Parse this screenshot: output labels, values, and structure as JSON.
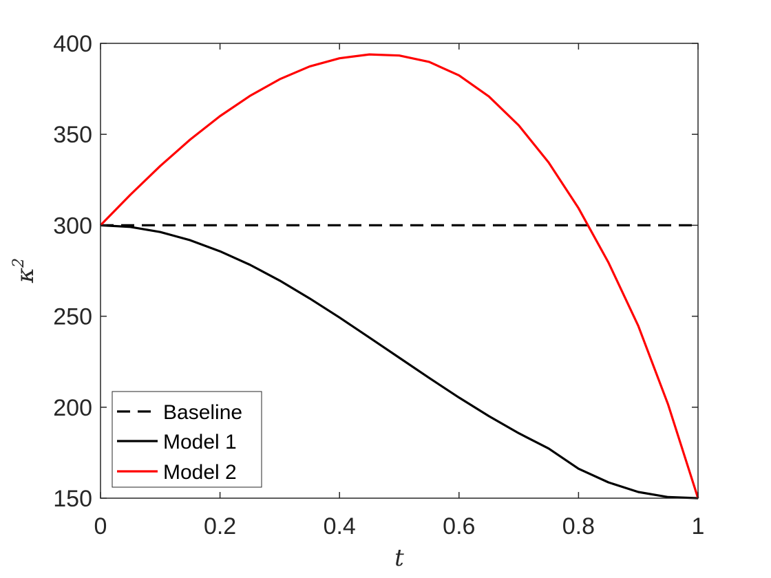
{
  "chart_data": {
    "type": "line",
    "xlabel": "t",
    "ylabel_base": "κ",
    "ylabel_sup": "2",
    "xlim": [
      0,
      1
    ],
    "ylim": [
      150,
      400
    ],
    "x_ticks": [
      0,
      0.2,
      0.4,
      0.6,
      0.8,
      1
    ],
    "x_tick_labels": [
      "0",
      "0.2",
      "0.4",
      "0.6",
      "0.8",
      "1"
    ],
    "y_ticks": [
      150,
      200,
      250,
      300,
      350,
      400
    ],
    "y_tick_labels": [
      "150",
      "200",
      "250",
      "300",
      "350",
      "400"
    ],
    "grid": false,
    "legend_position": "bottom-left",
    "series": [
      {
        "name": "Baseline",
        "color": "#000000",
        "style": "dashed",
        "x": [
          0,
          1
        ],
        "y": [
          300,
          300
        ]
      },
      {
        "name": "Model 1",
        "color": "#000000",
        "style": "solid",
        "x": [
          0,
          0.05,
          0.1,
          0.15,
          0.2,
          0.25,
          0.3,
          0.35,
          0.4,
          0.45,
          0.5,
          0.55,
          0.6,
          0.65,
          0.7,
          0.75,
          0.8,
          0.85,
          0.9,
          0.95,
          1
        ],
        "y": [
          300,
          299.1,
          296.3,
          291.8,
          285.7,
          278.3,
          269.6,
          259.8,
          249.3,
          238.3,
          227.2,
          216.1,
          205.3,
          195.1,
          185.7,
          177.3,
          166.2,
          158.7,
          153.4,
          150.6,
          150
        ]
      },
      {
        "name": "Model 2",
        "color": "#ff0000",
        "style": "solid",
        "x": [
          0,
          0.05,
          0.1,
          0.15,
          0.2,
          0.25,
          0.3,
          0.35,
          0.4,
          0.45,
          0.5,
          0.55,
          0.6,
          0.65,
          0.7,
          0.75,
          0.8,
          0.85,
          0.9,
          0.95,
          1
        ],
        "y": [
          300,
          316.8,
          332.6,
          347.1,
          360.0,
          371.1,
          380.3,
          387.3,
          391.8,
          393.9,
          393.3,
          389.8,
          382.4,
          370.8,
          354.9,
          334.5,
          309.4,
          279.6,
          244.7,
          201.4,
          150
        ]
      }
    ]
  }
}
